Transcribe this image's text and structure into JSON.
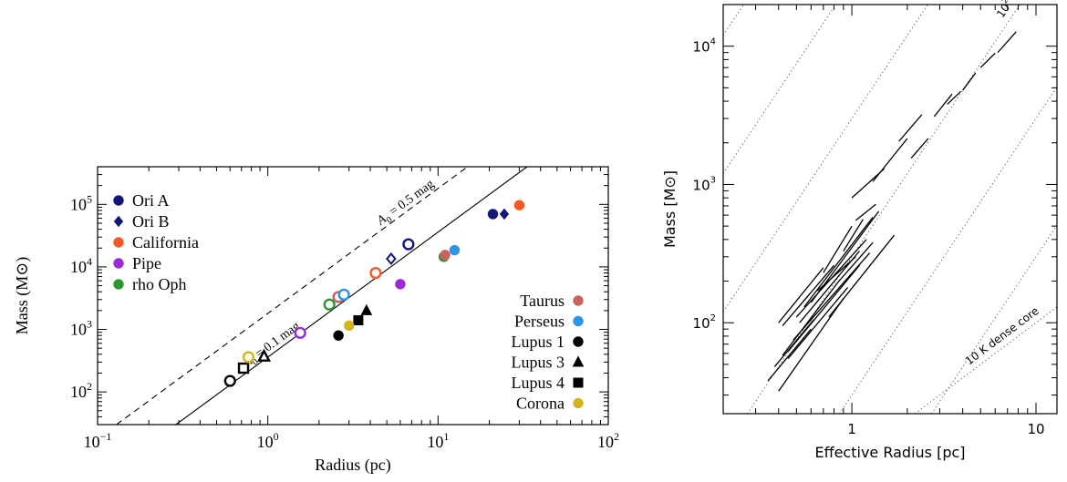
{
  "chart_data": [
    {
      "type": "scatter",
      "xlabel": "Radius (pc)",
      "ylabel": "Mass (M⊙)",
      "xscale": "log",
      "yscale": "log",
      "xlim": [
        0.1,
        100
      ],
      "ylim": [
        30,
        400000
      ],
      "x_ticks": [
        {
          "v": 0.1,
          "base": "10",
          "exp": "−1"
        },
        {
          "v": 1,
          "base": "10",
          "exp": "0"
        },
        {
          "v": 10,
          "base": "10",
          "exp": "1"
        },
        {
          "v": 100,
          "base": "10",
          "exp": "2"
        }
      ],
      "y_ticks": [
        {
          "v": 100,
          "base": "10",
          "exp": "2"
        },
        {
          "v": 1000,
          "base": "10",
          "exp": "3"
        },
        {
          "v": 10000,
          "base": "10",
          "exp": "4"
        },
        {
          "v": 100000,
          "base": "10",
          "exp": "5"
        }
      ],
      "lines": [
        {
          "label_pre": "A",
          "label_sub": "0",
          "label_post": " = 0.5 mag",
          "style": "dashed",
          "a": 1800,
          "label_r": 4.6
        },
        {
          "label_pre": "A",
          "label_sub": "0",
          "label_post": " = 0.1 mag",
          "style": "solid",
          "a": 360,
          "label_r": 0.75
        }
      ],
      "legend_left": [
        {
          "name": "Ori A",
          "color": "#14177a",
          "marker": "circle"
        },
        {
          "name": "Ori B",
          "color": "#14177a",
          "marker": "diamond"
        },
        {
          "name": "California",
          "color": "#f55a26",
          "marker": "circle"
        },
        {
          "name": "Pipe",
          "color": "#9b2bd6",
          "marker": "circle"
        },
        {
          "name": "rho Oph",
          "color": "#2a9630",
          "marker": "circle"
        }
      ],
      "legend_right": [
        {
          "name": "Taurus",
          "color": "#c8625f",
          "marker": "circle"
        },
        {
          "name": "Perseus",
          "color": "#2b95ec",
          "marker": "circle"
        },
        {
          "name": "Lupus 1",
          "color": "#000000",
          "marker": "circle"
        },
        {
          "name": "Lupus 3",
          "color": "#000000",
          "marker": "triangle"
        },
        {
          "name": "Lupus 4",
          "color": "#000000",
          "marker": "square"
        },
        {
          "name": "Corona",
          "color": "#d4b41c",
          "marker": "circle"
        }
      ],
      "points": [
        {
          "cloud": "Ori A",
          "r": 21.0,
          "m": 70000,
          "fill": true
        },
        {
          "cloud": "Ori A",
          "r": 6.7,
          "m": 23000,
          "fill": false
        },
        {
          "cloud": "Ori B",
          "r": 24.5,
          "m": 70000,
          "fill": true
        },
        {
          "cloud": "Ori B",
          "r": 5.3,
          "m": 13500,
          "fill": false
        },
        {
          "cloud": "California",
          "r": 30.0,
          "m": 97000,
          "fill": true
        },
        {
          "cloud": "California",
          "r": 4.3,
          "m": 8000,
          "fill": false
        },
        {
          "cloud": "Pipe",
          "r": 6.0,
          "m": 5300,
          "fill": true
        },
        {
          "cloud": "Pipe",
          "r": 1.55,
          "m": 880,
          "fill": false
        },
        {
          "cloud": "rho Oph",
          "r": 10.8,
          "m": 14500,
          "fill": true
        },
        {
          "cloud": "rho Oph",
          "r": 2.3,
          "m": 2500,
          "fill": false
        },
        {
          "cloud": "Taurus",
          "r": 11.0,
          "m": 15500,
          "fill": true
        },
        {
          "cloud": "Taurus",
          "r": 2.6,
          "m": 3300,
          "fill": false
        },
        {
          "cloud": "Perseus",
          "r": 12.5,
          "m": 18500,
          "fill": true
        },
        {
          "cloud": "Perseus",
          "r": 2.8,
          "m": 3600,
          "fill": false
        },
        {
          "cloud": "Lupus 1",
          "r": 2.6,
          "m": 800,
          "fill": true
        },
        {
          "cloud": "Lupus 1",
          "r": 0.6,
          "m": 150,
          "fill": false
        },
        {
          "cloud": "Lupus 3",
          "r": 3.8,
          "m": 2000,
          "fill": true
        },
        {
          "cloud": "Lupus 3",
          "r": 0.95,
          "m": 370,
          "fill": false
        },
        {
          "cloud": "Lupus 4",
          "r": 3.4,
          "m": 1400,
          "fill": true
        },
        {
          "cloud": "Lupus 4",
          "r": 0.72,
          "m": 240,
          "fill": false
        },
        {
          "cloud": "Corona",
          "r": 3.0,
          "m": 1150,
          "fill": true
        },
        {
          "cloud": "Corona",
          "r": 0.77,
          "m": 360,
          "fill": false
        }
      ]
    },
    {
      "type": "line",
      "xlabel": "Effective Radius",
      "xunit": "[pc]",
      "ylabel": "Mass",
      "yunit": "[M⊙]",
      "xscale": "log",
      "yscale": "log",
      "xlim": [
        0.2,
        13
      ],
      "ylim": [
        22,
        20000
      ],
      "x_ticks": [
        {
          "v": 1,
          "label": "1"
        },
        {
          "v": 10,
          "label": "10"
        }
      ],
      "y_ticks": [
        {
          "v": 100,
          "base": "10",
          "exp": "2"
        },
        {
          "v": 1000,
          "base": "10",
          "exp": "3"
        },
        {
          "v": 10000,
          "base": "10",
          "exp": "4"
        }
      ],
      "guide_lines": [
        {
          "a": 300000,
          "b": 2
        },
        {
          "a": 30000,
          "b": 2
        },
        {
          "a": 3000,
          "b": 2,
          "label_base": "10",
          "label_exp": "21",
          "label_unit": " cm",
          "label_unit_exp": "−2",
          "label_r": 8.8
        },
        {
          "a": 300,
          "b": 2,
          "label_base": "10",
          "label_exp": "20",
          "label_unit": " cm",
          "label_unit_exp": "−2",
          "label_r": 8.5
        },
        {
          "a": 30,
          "b": 2
        },
        {
          "a": 3,
          "b": 2
        },
        {
          "a": 10,
          "b": 1,
          "label": "10 K dense core",
          "label_r": 7.2
        }
      ],
      "segments": [
        {
          "r": [
            0.35,
            0.6
          ],
          "m": [
            38,
            90
          ]
        },
        {
          "r": [
            0.38,
            0.62
          ],
          "m": [
            48,
            105
          ]
        },
        {
          "r": [
            0.4,
            0.9
          ],
          "m": [
            32,
            150
          ]
        },
        {
          "r": [
            0.42,
            0.85
          ],
          "m": [
            58,
            200
          ]
        },
        {
          "r": [
            0.45,
            1.1
          ],
          "m": [
            62,
            260
          ]
        },
        {
          "r": [
            0.48,
            1.25
          ],
          "m": [
            75,
            320
          ]
        },
        {
          "r": [
            0.4,
            0.7
          ],
          "m": [
            100,
            250
          ]
        },
        {
          "r": [
            0.42,
            0.8
          ],
          "m": [
            95,
            260
          ]
        },
        {
          "r": [
            0.5,
            1.2
          ],
          "m": [
            110,
            400
          ]
        },
        {
          "r": [
            0.55,
            1.3
          ],
          "m": [
            130,
            580
          ]
        },
        {
          "r": [
            0.6,
            1.4
          ],
          "m": [
            140,
            640
          ]
        },
        {
          "r": [
            0.52,
            1.1
          ],
          "m": [
            100,
            330
          ]
        },
        {
          "r": [
            0.65,
            1.05
          ],
          "m": [
            170,
            300
          ]
        },
        {
          "r": [
            0.75,
            1.7
          ],
          "m": [
            110,
            430
          ]
        },
        {
          "r": [
            0.45,
            0.95
          ],
          "m": [
            55,
            180
          ]
        },
        {
          "r": [
            0.85,
            1.3
          ],
          "m": [
            200,
            380
          ]
        },
        {
          "r": [
            0.7,
            1.0
          ],
          "m": [
            230,
            500
          ]
        },
        {
          "r": [
            0.9,
            1.15
          ],
          "m": [
            330,
            560
          ]
        },
        {
          "r": [
            1.0,
            1.5
          ],
          "m": [
            800,
            1300
          ]
        },
        {
          "r": [
            1.3,
            2.0
          ],
          "m": [
            1050,
            2150
          ]
        },
        {
          "r": [
            1.8,
            2.4
          ],
          "m": [
            2050,
            3200
          ]
        },
        {
          "r": [
            2.1,
            2.6
          ],
          "m": [
            1550,
            2150
          ]
        },
        {
          "r": [
            2.8,
            3.5
          ],
          "m": [
            3100,
            4500
          ]
        },
        {
          "r": [
            3.3,
            3.9
          ],
          "m": [
            3800,
            4700
          ]
        },
        {
          "r": [
            4.0,
            4.7
          ],
          "m": [
            4800,
            6400
          ]
        },
        {
          "r": [
            5.0,
            6.0
          ],
          "m": [
            7000,
            8900
          ]
        },
        {
          "r": [
            6.2,
            7.8
          ],
          "m": [
            9000,
            12700
          ]
        },
        {
          "r": [
            1.05,
            1.35
          ],
          "m": [
            550,
            720
          ]
        }
      ]
    }
  ]
}
